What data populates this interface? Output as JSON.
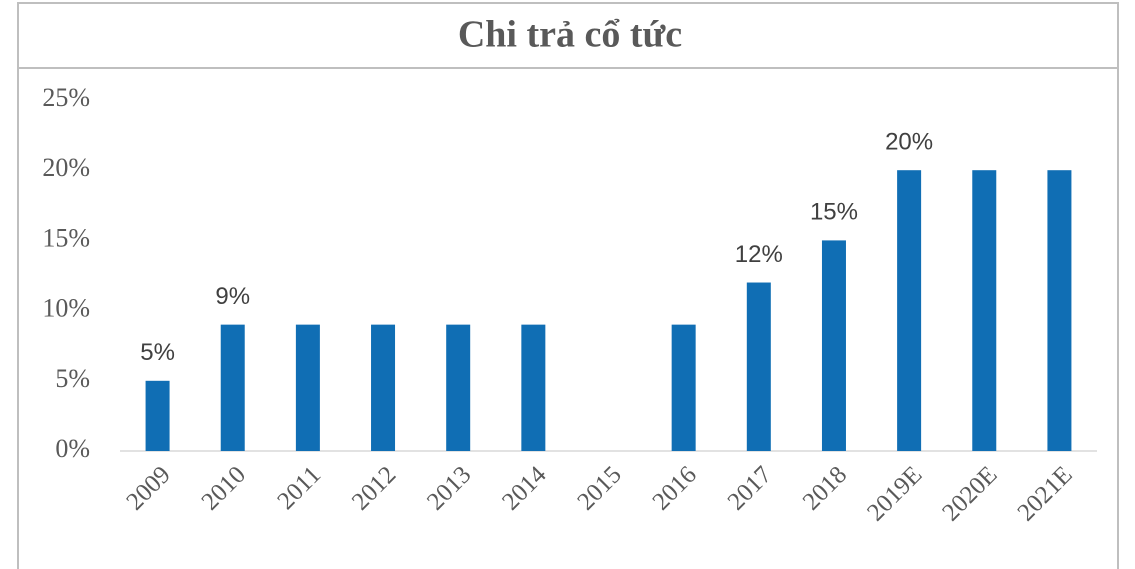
{
  "chart_data": {
    "type": "bar",
    "title": "Chi trả cổ tức",
    "categories": [
      "2009",
      "2010",
      "2011",
      "2012",
      "2013",
      "2014",
      "2015",
      "2016",
      "2017",
      "2018",
      "2019E",
      "2020E",
      "2021E"
    ],
    "values": [
      5,
      9,
      9,
      9,
      9,
      9,
      0,
      9,
      12,
      15,
      20,
      20,
      20
    ],
    "value_labels": [
      "5%",
      "9%",
      null,
      null,
      null,
      null,
      null,
      null,
      "12%",
      "15%",
      "20%",
      null,
      null
    ],
    "color": "#106eb4",
    "ylim": [
      0,
      25
    ],
    "yticks": [
      {
        "value": 0,
        "label": "0%"
      },
      {
        "value": 5,
        "label": "5%"
      },
      {
        "value": 10,
        "label": "10%"
      },
      {
        "value": 15,
        "label": "15%"
      },
      {
        "value": 20,
        "label": "20%"
      },
      {
        "value": 25,
        "label": "25%"
      }
    ],
    "grid": false
  }
}
